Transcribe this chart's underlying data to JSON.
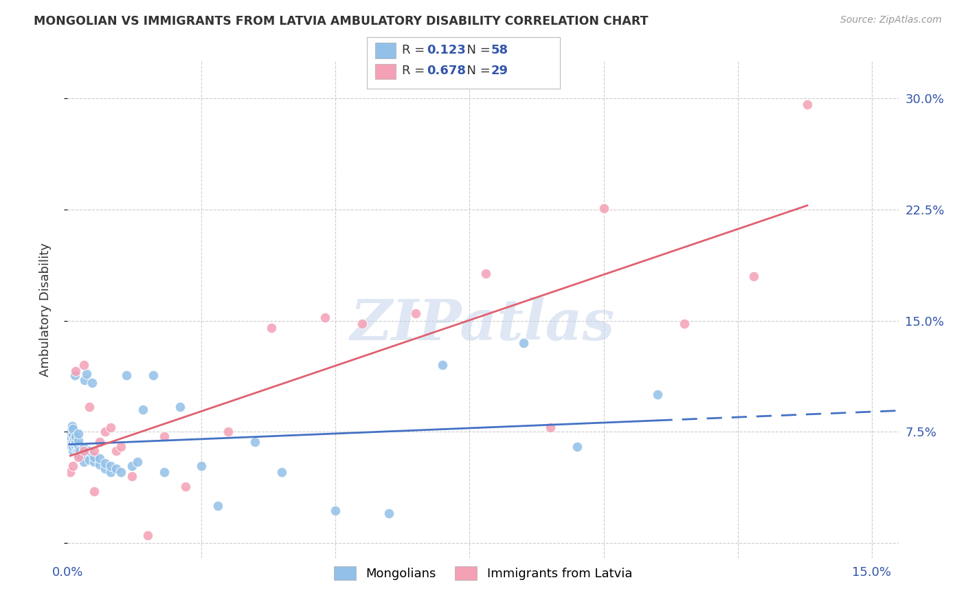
{
  "title": "MONGOLIAN VS IMMIGRANTS FROM LATVIA AMBULATORY DISABILITY CORRELATION CHART",
  "source": "Source: ZipAtlas.com",
  "ylabel": "Ambulatory Disability",
  "xlim": [
    0.0,
    0.155
  ],
  "ylim": [
    -0.01,
    0.325
  ],
  "xticks": [
    0.0,
    0.025,
    0.05,
    0.075,
    0.1,
    0.125,
    0.15
  ],
  "xticklabels": [
    "0.0%",
    "",
    "",
    "",
    "",
    "",
    "15.0%"
  ],
  "yticks_right": [
    0.075,
    0.15,
    0.225,
    0.3
  ],
  "yticklabels_right": [
    "7.5%",
    "15.0%",
    "22.5%",
    "30.0%"
  ],
  "mongolian_color": "#92C0E8",
  "latvia_color": "#F4A0B5",
  "mongolian_line_color": "#4472C4",
  "latvia_line_color": "#E06070",
  "watermark_text": "ZIPatlas",
  "mongolian_R": "0.123",
  "mongolian_N": "58",
  "latvia_R": "0.678",
  "latvia_N": "29",
  "legend_text_color": "#3355AA",
  "mongolian_x": [
    0.0003,
    0.0005,
    0.0005,
    0.0007,
    0.0008,
    0.001,
    0.001,
    0.001,
    0.001,
    0.001,
    0.0012,
    0.0013,
    0.0015,
    0.0015,
    0.0015,
    0.0018,
    0.002,
    0.002,
    0.002,
    0.002,
    0.002,
    0.0022,
    0.0025,
    0.003,
    0.003,
    0.003,
    0.0032,
    0.0035,
    0.004,
    0.004,
    0.0045,
    0.005,
    0.005,
    0.006,
    0.006,
    0.007,
    0.007,
    0.008,
    0.008,
    0.009,
    0.01,
    0.011,
    0.012,
    0.013,
    0.014,
    0.016,
    0.018,
    0.021,
    0.025,
    0.028,
    0.035,
    0.04,
    0.05,
    0.06,
    0.07,
    0.085,
    0.095,
    0.11
  ],
  "mongolian_y": [
    0.068,
    0.072,
    0.075,
    0.065,
    0.079,
    0.062,
    0.065,
    0.068,
    0.073,
    0.077,
    0.07,
    0.113,
    0.065,
    0.068,
    0.072,
    0.062,
    0.06,
    0.063,
    0.066,
    0.069,
    0.074,
    0.062,
    0.058,
    0.055,
    0.06,
    0.064,
    0.11,
    0.114,
    0.056,
    0.062,
    0.108,
    0.055,
    0.058,
    0.053,
    0.057,
    0.05,
    0.054,
    0.048,
    0.052,
    0.05,
    0.048,
    0.113,
    0.052,
    0.055,
    0.09,
    0.113,
    0.048,
    0.092,
    0.052,
    0.025,
    0.068,
    0.048,
    0.022,
    0.02,
    0.12,
    0.135,
    0.065,
    0.1
  ],
  "latvia_x": [
    0.0005,
    0.001,
    0.0015,
    0.002,
    0.003,
    0.003,
    0.004,
    0.005,
    0.005,
    0.006,
    0.007,
    0.008,
    0.009,
    0.01,
    0.012,
    0.015,
    0.018,
    0.022,
    0.03,
    0.038,
    0.048,
    0.055,
    0.065,
    0.078,
    0.09,
    0.1,
    0.115,
    0.128,
    0.138
  ],
  "latvia_y": [
    0.048,
    0.052,
    0.116,
    0.058,
    0.12,
    0.062,
    0.092,
    0.062,
    0.035,
    0.068,
    0.075,
    0.078,
    0.062,
    0.065,
    0.045,
    0.005,
    0.072,
    0.038,
    0.075,
    0.145,
    0.152,
    0.148,
    0.155,
    0.182,
    0.078,
    0.226,
    0.148,
    0.18,
    0.296
  ]
}
